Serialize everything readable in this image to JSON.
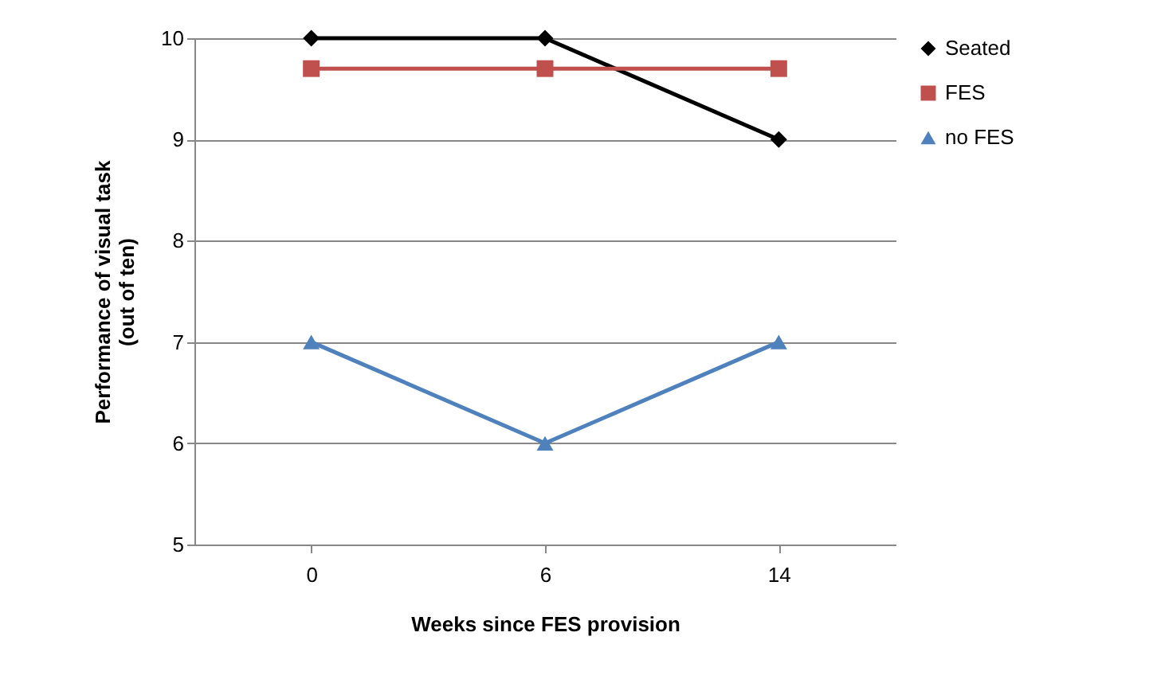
{
  "chart_data": {
    "type": "line",
    "xlabel": "Weeks since FES provision",
    "ylabel": "Performance of visual task\n(out of ten)",
    "categories": [
      "0",
      "6",
      "14"
    ],
    "series": [
      {
        "name": "Seated",
        "color": "#000000",
        "marker": "diamond",
        "values": [
          10,
          10,
          9
        ]
      },
      {
        "name": "FES",
        "color": "#c0504d",
        "marker": "square",
        "values": [
          9.7,
          9.7,
          9.7
        ]
      },
      {
        "name": "no FES",
        "color": "#4f81bd",
        "marker": "triangle",
        "values": [
          7,
          6,
          7
        ]
      }
    ],
    "ylim": [
      5,
      10
    ],
    "yticks": [
      5,
      6,
      7,
      8,
      9,
      10
    ],
    "grid": "y",
    "legend": "right"
  }
}
